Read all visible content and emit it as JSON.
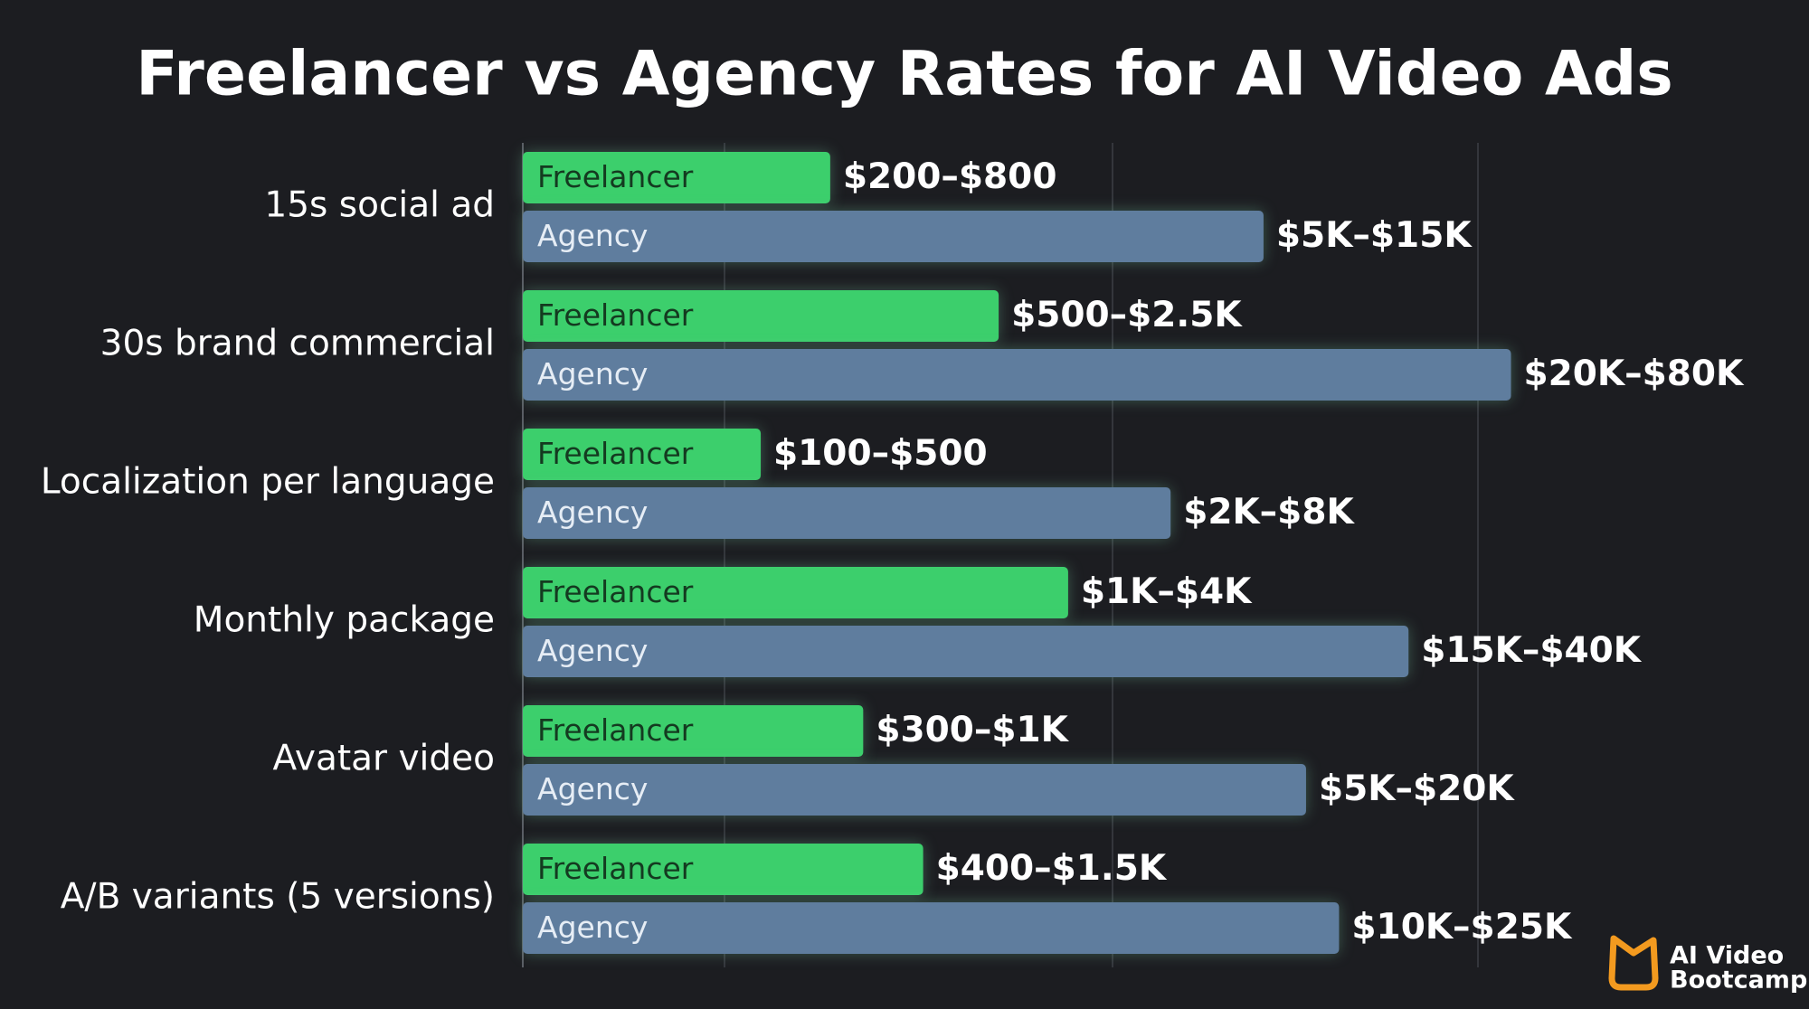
{
  "chart_data": {
    "type": "bar",
    "orientation": "horizontal",
    "title": "Freelancer vs Agency Rates for AI Video Ads",
    "categories": [
      "15s social ad",
      "30s brand commercial",
      "Localization per language",
      "Monthly package",
      "Avatar video",
      "A/B variants (5 versions)"
    ],
    "series": [
      {
        "name": "Freelancer",
        "color": "#3ccf6c",
        "values": [
          800,
          2500,
          500,
          4000,
          1000,
          1500
        ],
        "value_labels": [
          "$200–$800",
          "$500–$2.5K",
          "$100–$500",
          "$1K–$4K",
          "$300–$1K",
          "$400–$1.5K"
        ]
      },
      {
        "name": "Agency",
        "color": "#5f7d9e",
        "values": [
          15000,
          80000,
          8000,
          40000,
          20000,
          25000
        ],
        "value_labels": [
          "$5K–$15K",
          "$20K–$80K",
          "$2K–$8K",
          "$15K–$40K",
          "$5K–$20K",
          "$10K–$25K"
        ]
      }
    ],
    "xlim": [
      100,
      100000
    ],
    "log_scale": true
  },
  "brand_lines": [
    "AI Video",
    "Bootcamp"
  ]
}
